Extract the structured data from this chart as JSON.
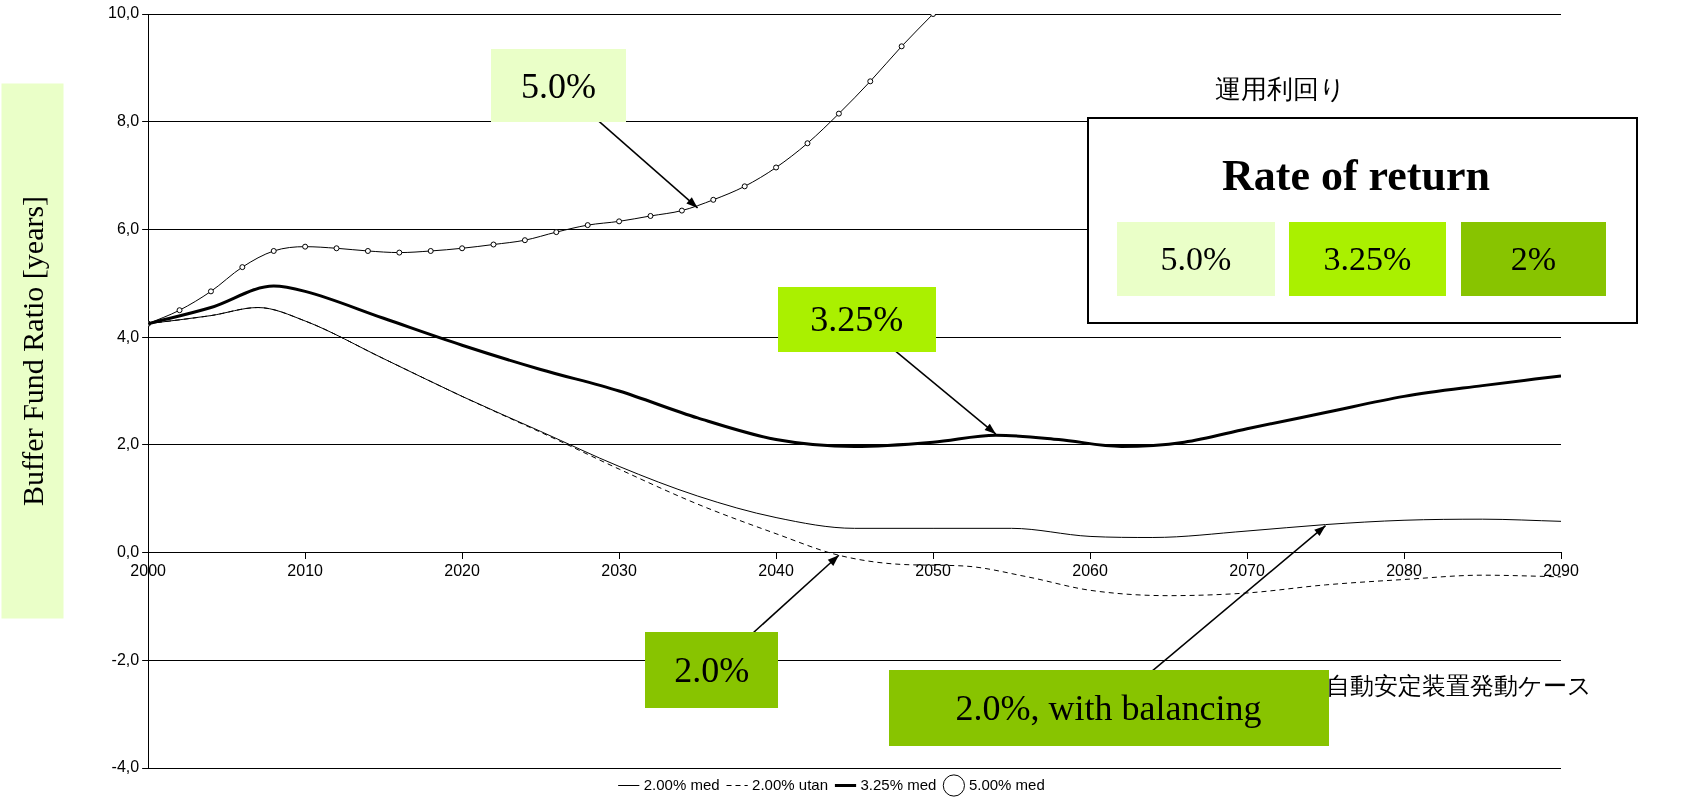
{
  "chart_data": {
    "type": "line",
    "ylabel": "Buffer Fund Ratio [years]",
    "xlim": [
      2000,
      2090
    ],
    "xticks": [
      2000,
      2010,
      2020,
      2030,
      2040,
      2050,
      2060,
      2070,
      2080,
      2090
    ],
    "ylim": [
      -4,
      10
    ],
    "yticks": [
      {
        "value": -4,
        "label": "-4,0"
      },
      {
        "value": -2,
        "label": "-2,0"
      },
      {
        "value": 0,
        "label": "0,0"
      },
      {
        "value": 2,
        "label": "2,0"
      },
      {
        "value": 4,
        "label": "4,0"
      },
      {
        "value": 6,
        "label": "6,0"
      },
      {
        "value": 8,
        "label": "8,0"
      },
      {
        "value": 10,
        "label": "10,0"
      }
    ],
    "grid": "y",
    "legend": "bottom",
    "series": [
      {
        "name": "2.00% med",
        "color": "#000000",
        "line_style": "solid",
        "marker": "none",
        "x": [
          2000,
          2004,
          2007,
          2010,
          2015,
          2020,
          2025,
          2030,
          2035,
          2040,
          2045,
          2050,
          2055,
          2060,
          2064,
          2070,
          2075,
          2080,
          2085,
          2090
        ],
        "values": [
          4.25,
          4.4,
          4.55,
          4.3,
          3.6,
          2.9,
          2.25,
          1.6,
          1.05,
          0.65,
          0.45,
          0.45,
          0.45,
          0.3,
          0.28,
          0.4,
          0.52,
          0.6,
          0.62,
          0.58
        ]
      },
      {
        "name": "2.00% utan",
        "color": "#000000",
        "line_style": "dashed",
        "marker": "none",
        "x": [
          2000,
          2004,
          2007,
          2010,
          2015,
          2020,
          2026,
          2030,
          2035,
          2040,
          2044,
          2048,
          2052,
          2056,
          2060,
          2065,
          2070,
          2075,
          2080,
          2085,
          2090
        ],
        "values": [
          4.25,
          4.4,
          4.55,
          4.3,
          3.6,
          2.9,
          2.1,
          1.55,
          0.9,
          0.35,
          -0.05,
          -0.22,
          -0.25,
          -0.45,
          -0.7,
          -0.8,
          -0.75,
          -0.6,
          -0.5,
          -0.42,
          -0.45
        ]
      },
      {
        "name": "3.25% med",
        "color": "#000000",
        "line_style": "solid",
        "marker": "none",
        "x": [
          2000,
          2004,
          2008,
          2010,
          2015,
          2020,
          2025,
          2030,
          2035,
          2040,
          2045,
          2050,
          2054,
          2058,
          2062,
          2066,
          2070,
          2075,
          2080,
          2085,
          2090
        ],
        "values": [
          4.25,
          4.55,
          4.95,
          4.85,
          4.35,
          3.85,
          3.4,
          3.0,
          2.5,
          2.1,
          1.97,
          2.05,
          2.18,
          2.1,
          1.97,
          2.05,
          2.3,
          2.6,
          2.9,
          3.1,
          3.28
        ]
      },
      {
        "name": "5.00% med",
        "color": "#000000",
        "line_style": "solid",
        "marker": "circle",
        "x": [
          2000,
          2002,
          2004,
          2006,
          2008,
          2010,
          2012,
          2014,
          2016,
          2018,
          2020,
          2022,
          2024,
          2026,
          2028,
          2030,
          2032,
          2034,
          2036,
          2038,
          2040,
          2042,
          2044,
          2046,
          2048,
          2050
        ],
        "values": [
          4.25,
          4.5,
          4.85,
          5.3,
          5.6,
          5.68,
          5.65,
          5.6,
          5.57,
          5.6,
          5.65,
          5.72,
          5.8,
          5.95,
          6.08,
          6.15,
          6.25,
          6.35,
          6.55,
          6.8,
          7.15,
          7.6,
          8.15,
          8.75,
          9.4,
          10.0
        ]
      }
    ],
    "annotations": [
      {
        "text": "5.0%",
        "x": 2035,
        "y": 6.4
      },
      {
        "text": "3.25%",
        "x": 2054,
        "y": 2.2
      },
      {
        "text": "2.0%",
        "x": 2044,
        "y": -0.05
      },
      {
        "text": "2.0%, with balancing",
        "x": 2075,
        "y": 0.5
      },
      "自動安定装置発動ケース",
      "運用利回り",
      "Rate of return",
      "5.0%",
      "3.25%",
      "2%"
    ]
  }
}
